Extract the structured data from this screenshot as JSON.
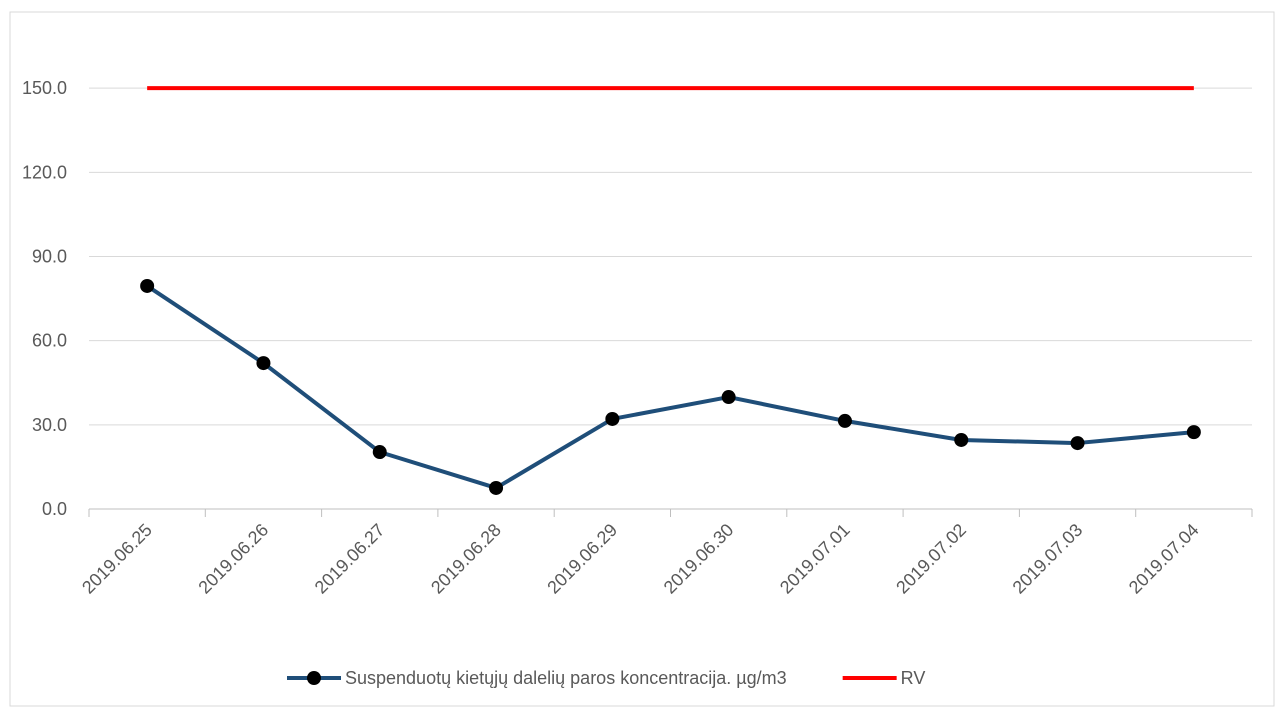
{
  "chart_data": {
    "type": "line",
    "categories": [
      "2019.06.25",
      "2019.06.26",
      "2019.06.27",
      "2019.06.28",
      "2019.06.29",
      "2019.06.30",
      "2019.07.01",
      "2019.07.02",
      "2019.07.03",
      "2019.07.04"
    ],
    "series": [
      {
        "name": "Suspenduotų kietųjų dalelių paros koncentracija. µg/m3",
        "color": "#1f4e79",
        "marker": true,
        "values": [
          79.5,
          52.0,
          20.3,
          7.5,
          32.1,
          39.9,
          31.4,
          24.6,
          23.5,
          27.4
        ]
      },
      {
        "name": "RV",
        "color": "#ff0000",
        "marker": false,
        "values": [
          150,
          150,
          150,
          150,
          150,
          150,
          150,
          150,
          150,
          150
        ]
      }
    ],
    "ylim": [
      0,
      180
    ],
    "yticks": [
      {
        "value": 0,
        "label": "0.0"
      },
      {
        "value": 30,
        "label": "30.0"
      },
      {
        "value": 60,
        "label": "60.0"
      },
      {
        "value": 90,
        "label": "90.0"
      },
      {
        "value": 120,
        "label": "120.0"
      },
      {
        "value": 150,
        "label": "150.0"
      }
    ],
    "grid": true,
    "legend": "bottom"
  }
}
